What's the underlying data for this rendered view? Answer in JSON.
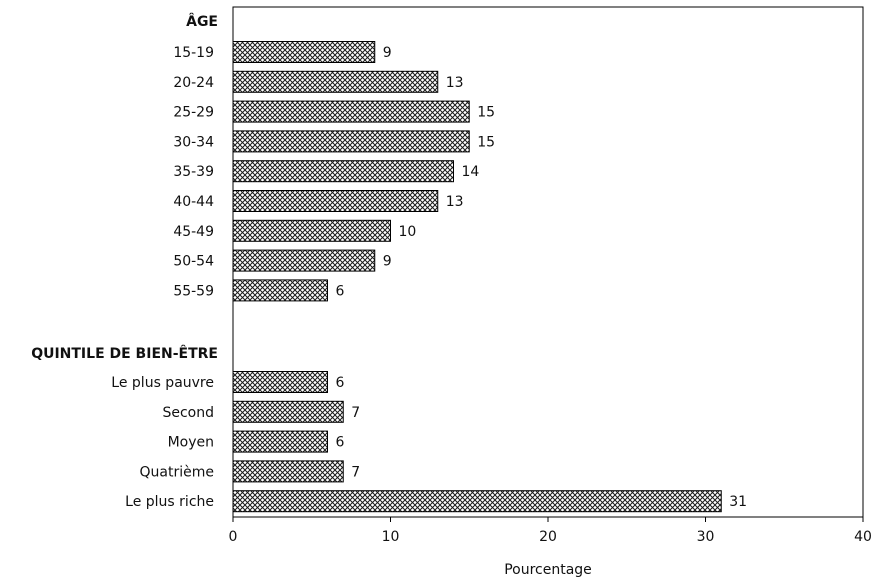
{
  "chart_data": {
    "type": "bar",
    "orientation": "horizontal",
    "groups": [
      {
        "label": "ÂGE",
        "categories": [
          "15-19",
          "20-24",
          "25-29",
          "30-34",
          "35-39",
          "40-44",
          "45-49",
          "50-54",
          "55-59"
        ],
        "values": [
          9,
          13,
          15,
          15,
          14,
          13,
          10,
          9,
          6
        ]
      },
      {
        "label": "QUINTILE DE BIEN-ÊTRE",
        "categories": [
          "Le plus pauvre",
          "Second",
          "Moyen",
          "Quatrième",
          "Le plus riche"
        ],
        "values": [
          6,
          7,
          6,
          7,
          31
        ]
      }
    ],
    "xlabel": "Pourcentage",
    "xlim": [
      0,
      40
    ],
    "xticks": [
      0,
      10,
      20,
      30,
      40
    ],
    "grid": false,
    "bar_fill": "crosshatch",
    "bar_color": "#000000"
  }
}
